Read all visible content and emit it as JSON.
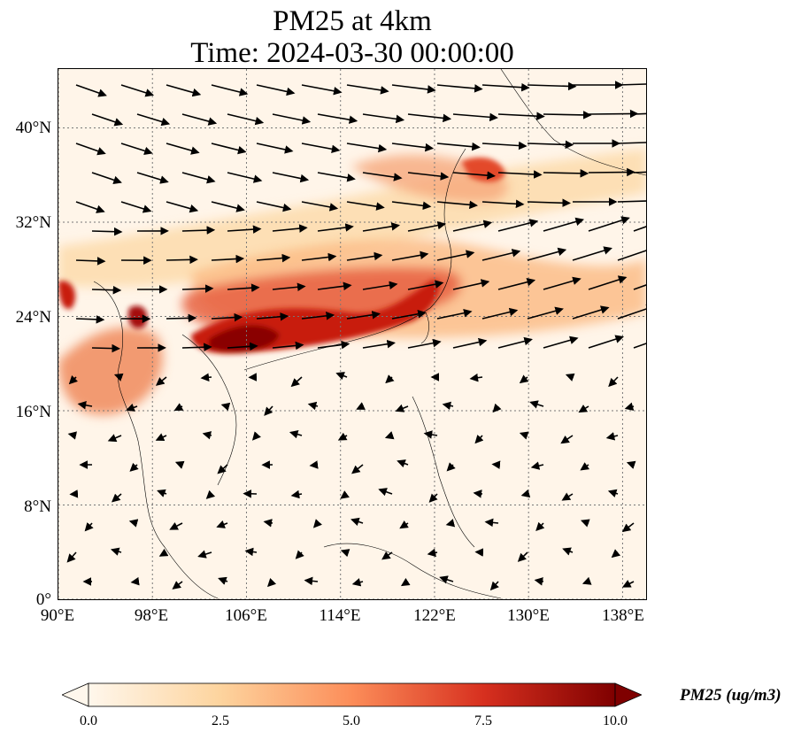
{
  "title": {
    "line1": "PM25 at 4km",
    "line2": "Time: 2024-03-30 00:00:00"
  },
  "map": {
    "variable": "PM25",
    "level": "4km",
    "lon_range": [
      90,
      140
    ],
    "lat_range": [
      0,
      45
    ],
    "gridlines": true,
    "coastlines": true,
    "overlay": "wind vectors"
  },
  "axes": {
    "y_ticks": [
      {
        "value": 40,
        "label": "40°N"
      },
      {
        "value": 32,
        "label": "32°N"
      },
      {
        "value": 24,
        "label": "24°N"
      },
      {
        "value": 16,
        "label": "16°N"
      },
      {
        "value": 8,
        "label": "8°N"
      },
      {
        "value": 0,
        "label": "0°"
      }
    ],
    "x_ticks": [
      {
        "value": 90,
        "label": "90°E"
      },
      {
        "value": 98,
        "label": "98°E"
      },
      {
        "value": 106,
        "label": "106°E"
      },
      {
        "value": 114,
        "label": "114°E"
      },
      {
        "value": 122,
        "label": "122°E"
      },
      {
        "value": 130,
        "label": "130°E"
      },
      {
        "value": 138,
        "label": "138°E"
      }
    ]
  },
  "colorbar": {
    "title": "PM25 (ug/m3)",
    "min": 0,
    "max": 10,
    "extend": "both",
    "colormap": "OrRd",
    "colors": [
      "#fff7ec",
      "#fdd49e",
      "#fc8d59",
      "#d7301f",
      "#7f0000"
    ],
    "ticks": [
      {
        "value": 0,
        "label": "0.0"
      },
      {
        "value": 2.5,
        "label": "2.5"
      },
      {
        "value": 5,
        "label": "5.0"
      },
      {
        "value": 7.5,
        "label": "7.5"
      },
      {
        "value": 10,
        "label": "10.0"
      }
    ]
  }
}
